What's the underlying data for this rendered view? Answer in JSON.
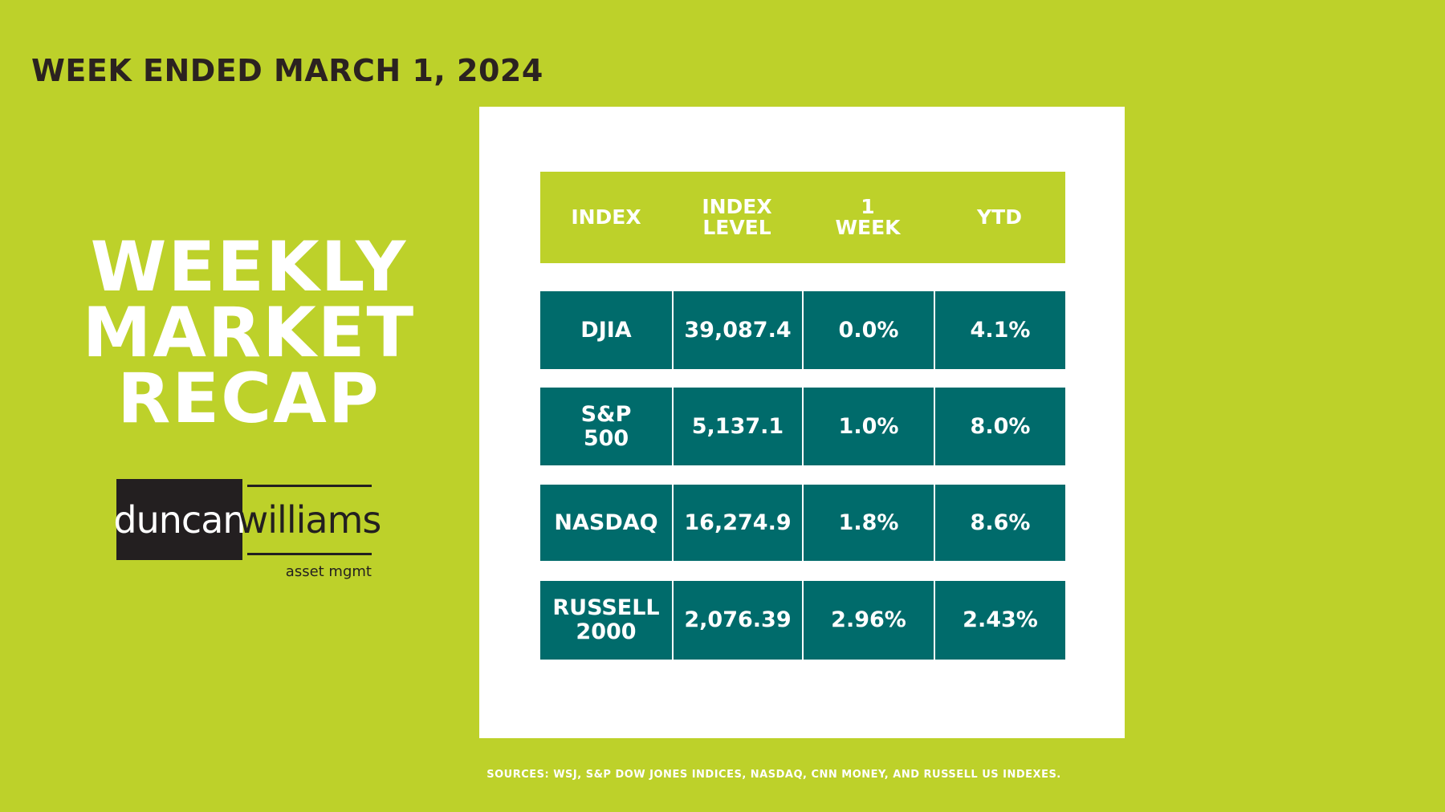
{
  "header": {
    "week": "WEEK ENDED MARCH 1, 2024",
    "title": [
      "WEEKLY",
      "MARKET",
      "RECAP"
    ]
  },
  "logo": {
    "left": "duncan",
    "right": "williams",
    "sub": "asset mgmt"
  },
  "table": {
    "columns": [
      "INDEX",
      "INDEX LEVEL",
      "1 WEEK",
      "YTD"
    ],
    "rows": [
      [
        "DJIA",
        "39,087.4",
        "0.0%",
        "4.1%"
      ],
      [
        "S&P 500",
        "5,137.1",
        "1.0%",
        "8.0%"
      ],
      [
        "NASDAQ",
        "16,274.9",
        "1.8%",
        "8.6%"
      ],
      [
        "RUSSELL 2000",
        "2,076.39",
        "2.96%",
        "2.43%"
      ]
    ]
  },
  "footer": {
    "sources": "SOURCES: WSJ, S&P DOW JONES INDICES, NASDAQ, CNN  MONEY, AND  RUSSELL US INDEXES."
  }
}
